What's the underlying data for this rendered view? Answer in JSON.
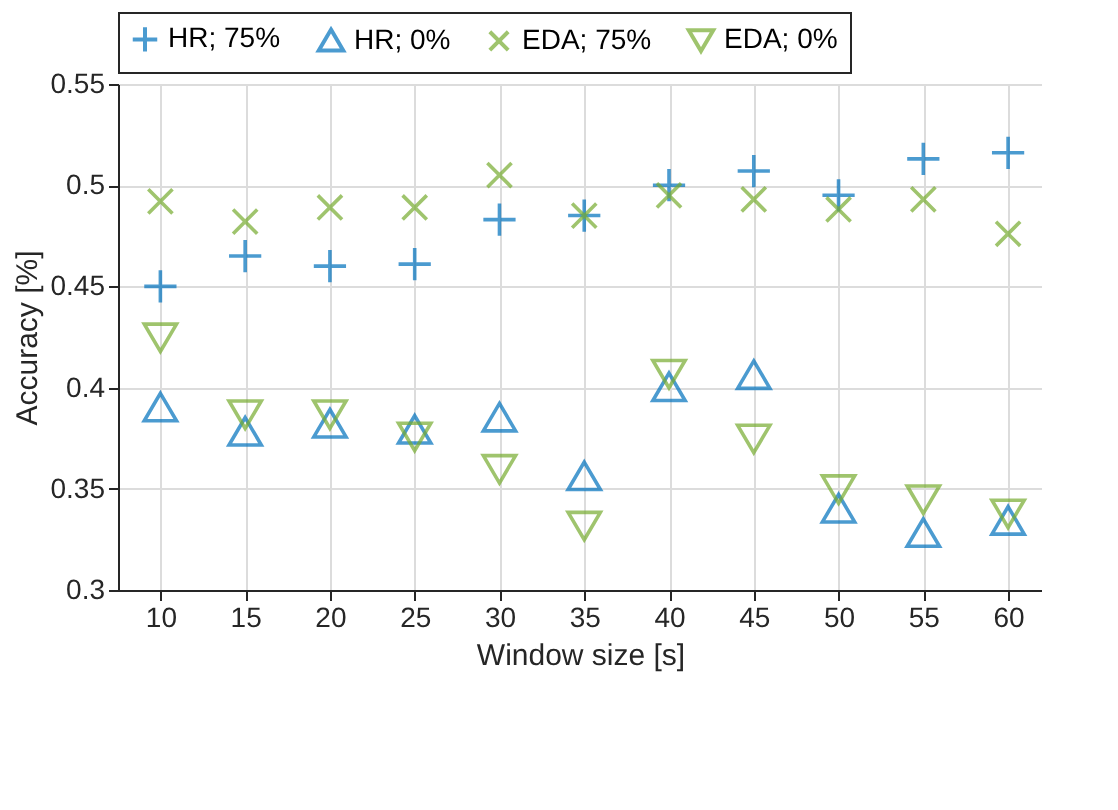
{
  "chart_data": {
    "type": "scatter",
    "xlabel": "Window size [s]",
    "ylabel": "Accuracy [%]",
    "x": [
      10,
      15,
      20,
      25,
      30,
      35,
      40,
      45,
      50,
      55,
      60
    ],
    "series": [
      {
        "name": "HR; 75%",
        "color": "#0072bd",
        "marker": "cross",
        "values": [
          0.45,
          0.465,
          0.46,
          0.461,
          0.483,
          0.485,
          0.5,
          0.507,
          0.495,
          0.513,
          0.516
        ]
      },
      {
        "name": "HR; 0%",
        "color": "#0072bd",
        "marker": "triangle-up",
        "values": [
          0.39,
          0.378,
          0.382,
          0.379,
          0.385,
          0.356,
          0.4,
          0.406,
          0.34,
          0.328,
          0.334
        ]
      },
      {
        "name": "EDA; 75%",
        "color": "#77ac30",
        "marker": "x",
        "values": [
          0.492,
          0.482,
          0.489,
          0.489,
          0.505,
          0.485,
          0.495,
          0.493,
          0.488,
          0.493,
          0.476
        ]
      },
      {
        "name": "EDA; 0%",
        "color": "#77ac30",
        "marker": "triangle-down",
        "values": [
          0.425,
          0.387,
          0.387,
          0.376,
          0.36,
          0.332,
          0.407,
          0.375,
          0.35,
          0.345,
          0.338
        ]
      }
    ],
    "xlim": [
      7.5,
      62
    ],
    "xticks": [
      10,
      15,
      20,
      25,
      30,
      35,
      40,
      45,
      50,
      55,
      60
    ],
    "ylim": [
      0.3,
      0.55
    ],
    "yticks": [
      0.3,
      0.35,
      0.4,
      0.45,
      0.5,
      0.55
    ],
    "grid": true,
    "legend": "top"
  }
}
